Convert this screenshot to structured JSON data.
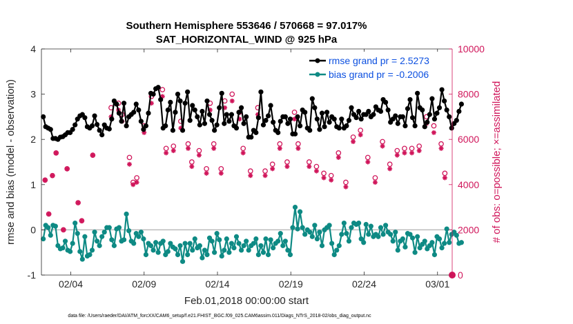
{
  "colors": {
    "rmse": "#000000",
    "bias": "#0e8a84",
    "obs": "#d0155a",
    "legend_text": "#0b4fe0",
    "zero_line": "#bbbbbb"
  },
  "chart_data": {
    "type": "line",
    "title": "Southern Hemisphere 553646 / 570668 = 97.017%",
    "subtitle": "SAT_HORIZONTAL_WIND @ 925 hPa",
    "xlabel": "Feb.01,2018 00:00:00 start",
    "ylabel": "rmse and bias (model - observation)",
    "ylabel_right": "# of obs: o=possible; ×=assimilated",
    "footer": "data file: /Users/raeder/DAI/ATM_forcXX/CAM6_setup/f.e21.FHIST_BGC.f09_025.CAM6assim.011/Diags_NTrS_2018-02/obs_diag_output.nc",
    "xlim": [
      1,
      29
    ],
    "ylim": [
      -1,
      4
    ],
    "ylim_right": [
      0,
      10000
    ],
    "x_ticks": [
      3,
      8,
      13,
      18,
      23,
      28
    ],
    "x_tick_labels": [
      "02/04",
      "02/09",
      "02/14",
      "02/19",
      "02/24",
      "03/01"
    ],
    "y_ticks": [
      -1,
      0,
      1,
      2,
      3,
      4
    ],
    "y_tick_labels": [
      "-1",
      "0",
      "1",
      "2",
      "3",
      "4"
    ],
    "y_ticks_right": [
      0,
      2000,
      4000,
      6000,
      8000,
      10000
    ],
    "y_tick_labels_right": [
      "0",
      "2000",
      "4000",
      "6000",
      "8000",
      "10000"
    ],
    "zero_line": 0,
    "legend": [
      "rmse grand pr = 2.5273",
      "bias grand pr = -0.2006"
    ],
    "legend_position": "top-right",
    "x_start": 1.125,
    "x_step": 0.1667,
    "series": [
      {
        "name": "rmse",
        "values": [
          2.5,
          2.28,
          2.25,
          2.22,
          2.02,
          2.02,
          2.0,
          2.05,
          2.06,
          2.1,
          2.15,
          2.15,
          2.22,
          2.32,
          2.45,
          2.52,
          2.55,
          2.48,
          2.28,
          2.25,
          2.3,
          2.52,
          2.33,
          2.2,
          2.1,
          2.32,
          2.25,
          2.23,
          2.45,
          2.85,
          2.78,
          2.58,
          2.4,
          2.8,
          2.3,
          2.5,
          2.55,
          2.6,
          2.78,
          2.65,
          2.4,
          2.22,
          2.3,
          2.58,
          3.02,
          3.0,
          3.12,
          3.15,
          2.88,
          2.25,
          2.3,
          2.65,
          2.82,
          2.2,
          2.6,
          3.0,
          2.85,
          2.2,
          2.8,
          3.05,
          2.42,
          2.75,
          2.65,
          2.5,
          2.32,
          2.62,
          2.35,
          2.85,
          2.55,
          2.42,
          2.2,
          2.32,
          2.7,
          3.02,
          2.35,
          2.55,
          2.4,
          2.55,
          2.3,
          2.25,
          2.6,
          2.7,
          2.35,
          2.5,
          2.05,
          2.05,
          2.2,
          2.15,
          2.48,
          3.05,
          2.32,
          2.42,
          2.52,
          2.75,
          2.38,
          2.2,
          2.15,
          2.4,
          2.5,
          2.5,
          2.35,
          2.45,
          2.12,
          2.12,
          2.5,
          2.3,
          2.65,
          2.6,
          2.25,
          2.2,
          2.9,
          2.7,
          2.45,
          2.22,
          2.58,
          2.28,
          2.6,
          2.38,
          2.5,
          2.45,
          2.28,
          2.25,
          2.45,
          2.25,
          2.3,
          2.42,
          2.7,
          2.55,
          2.48,
          2.62,
          2.45,
          2.55,
          2.55,
          2.62,
          2.5,
          2.55,
          2.72,
          2.65,
          2.62,
          2.88,
          2.82,
          2.65,
          2.38,
          2.45,
          2.52,
          2.35,
          2.5,
          2.5,
          2.3,
          2.68,
          2.88,
          2.48,
          2.3,
          3.02,
          2.7,
          2.65,
          2.28,
          2.38,
          2.55,
          2.9,
          2.45,
          2.58,
          2.7,
          3.1,
          2.85,
          2.65,
          2.5,
          2.25,
          2.35,
          2.42,
          2.62,
          2.78
        ]
      },
      {
        "name": "bias",
        "values": [
          -0.2,
          0.1,
          0.05,
          -0.12,
          0.1,
          0.08,
          -0.35,
          -0.42,
          -0.4,
          -0.25,
          -0.45,
          -0.48,
          -0.3,
          0.15,
          -0.08,
          -0.48,
          -0.65,
          -0.15,
          -0.58,
          -0.55,
          -0.45,
          -0.05,
          -0.25,
          -0.35,
          -0.15,
          -0.05,
          0.05,
          0.05,
          -0.22,
          -0.35,
          0.02,
          0.05,
          -0.25,
          -0.22,
          0.35,
          -0.02,
          -0.25,
          -0.3,
          -0.08,
          -0.15,
          -0.05,
          -0.2,
          -0.55,
          -0.3,
          -0.35,
          -0.45,
          -0.28,
          -0.5,
          -0.3,
          -0.25,
          -0.55,
          -0.48,
          -0.3,
          -0.38,
          -0.42,
          -0.55,
          -0.35,
          -0.7,
          -0.3,
          -0.55,
          -0.3,
          -0.45,
          -0.2,
          -0.4,
          -0.35,
          -0.62,
          -0.45,
          -0.55,
          -0.18,
          -0.25,
          -0.5,
          -0.08,
          -0.22,
          -0.58,
          -0.45,
          -0.2,
          -0.5,
          -0.3,
          -0.4,
          -0.15,
          -0.3,
          -0.45,
          -0.35,
          -0.25,
          -0.45,
          -0.35,
          -0.3,
          -0.2,
          -0.55,
          -0.35,
          -0.5,
          -0.2,
          -0.55,
          -0.22,
          -0.4,
          -0.3,
          -0.25,
          -0.08,
          -0.35,
          -0.25,
          -0.45,
          -0.55,
          0.05,
          0.5,
          0.02,
          0.4,
          0.05,
          -0.1,
          0.0,
          -0.05,
          -0.15,
          0.1,
          -0.2,
          -0.05,
          -0.35,
          0.0,
          0.05,
          0.1,
          -0.3,
          -0.55,
          -0.45,
          -0.35,
          -0.1,
          0.15,
          -0.08,
          -0.25,
          0.05,
          0.15,
          0.12,
          0.15,
          -0.2,
          -0.28,
          0.12,
          -0.1,
          0.08,
          -0.15,
          -0.1,
          -0.15,
          0.05,
          -0.1,
          0.1,
          -0.05,
          -0.1,
          -0.25,
          -0.05,
          -0.45,
          -0.25,
          -0.2,
          -0.38,
          -0.08,
          -0.1,
          -0.18,
          -0.5,
          -0.15,
          -0.4,
          -0.32,
          -0.25,
          -0.42,
          -0.35,
          -0.28,
          -0.55,
          -0.15,
          -0.2,
          -0.4,
          -0.3,
          0.02,
          -0.28,
          -0.1,
          -0.05,
          -0.12,
          -0.3,
          -0.28
        ]
      }
    ],
    "obs_possible": [
      {
        "x": 1.25,
        "y": 4200
      },
      {
        "x": 1.5,
        "y": 2700
      },
      {
        "x": 1.75,
        "y": 4400
      },
      {
        "x": 2.0,
        "y": 5400
      },
      {
        "x": 2.5,
        "y": 2000
      },
      {
        "x": 2.75,
        "y": 4700
      },
      {
        "x": 3.5,
        "y": 3200
      },
      {
        "x": 3.75,
        "y": 2400
      },
      {
        "x": 4.5,
        "y": 5300
      },
      {
        "x": 5.75,
        "y": 7400
      },
      {
        "x": 6.25,
        "y": 7600
      },
      {
        "x": 6.5,
        "y": 7100
      },
      {
        "x": 7.0,
        "y": 5200
      },
      {
        "x": 7.25,
        "y": 4100
      },
      {
        "x": 7.5,
        "y": 4300
      },
      {
        "x": 8.0,
        "y": 6600
      },
      {
        "x": 8.5,
        "y": 7900
      },
      {
        "x": 9.25,
        "y": 8200
      },
      {
        "x": 9.5,
        "y": 5600
      },
      {
        "x": 10.0,
        "y": 5700
      },
      {
        "x": 10.5,
        "y": 6800
      },
      {
        "x": 11.0,
        "y": 5800
      },
      {
        "x": 11.25,
        "y": 5000
      },
      {
        "x": 11.75,
        "y": 5500
      },
      {
        "x": 12.25,
        "y": 4700
      },
      {
        "x": 12.5,
        "y": 7600
      },
      {
        "x": 12.75,
        "y": 5800
      },
      {
        "x": 13.25,
        "y": 4700
      },
      {
        "x": 13.5,
        "y": 7700
      },
      {
        "x": 14.0,
        "y": 8000
      },
      {
        "x": 14.5,
        "y": 7200
      },
      {
        "x": 14.75,
        "y": 5600
      },
      {
        "x": 15.25,
        "y": 4600
      },
      {
        "x": 15.75,
        "y": 7400
      },
      {
        "x": 16.25,
        "y": 4600
      },
      {
        "x": 16.75,
        "y": 4900
      },
      {
        "x": 17.25,
        "y": 5800
      },
      {
        "x": 17.75,
        "y": 5000
      },
      {
        "x": 18.25,
        "y": 7200
      },
      {
        "x": 18.5,
        "y": 5800
      },
      {
        "x": 19.25,
        "y": 5000
      },
      {
        "x": 19.75,
        "y": 4800
      },
      {
        "x": 20.25,
        "y": 4500
      },
      {
        "x": 20.75,
        "y": 4400
      },
      {
        "x": 21.25,
        "y": 5400
      },
      {
        "x": 21.75,
        "y": 4100
      },
      {
        "x": 22.25,
        "y": 6100
      },
      {
        "x": 22.75,
        "y": 6400
      },
      {
        "x": 23.25,
        "y": 5200
      },
      {
        "x": 23.75,
        "y": 4300
      },
      {
        "x": 24.25,
        "y": 5900
      },
      {
        "x": 24.75,
        "y": 4900
      },
      {
        "x": 25.25,
        "y": 5500
      },
      {
        "x": 25.75,
        "y": 5600
      },
      {
        "x": 26.25,
        "y": 5600
      },
      {
        "x": 26.75,
        "y": 5700
      },
      {
        "x": 27.25,
        "y": 7000
      },
      {
        "x": 27.75,
        "y": 6600
      },
      {
        "x": 28.25,
        "y": 5800
      },
      {
        "x": 28.5,
        "y": 4500
      }
    ],
    "obs_assimilated": [
      {
        "x": 1.25,
        "y": 4200
      },
      {
        "x": 1.5,
        "y": 2700
      },
      {
        "x": 1.75,
        "y": 4400
      },
      {
        "x": 2.0,
        "y": 5400
      },
      {
        "x": 2.5,
        "y": 2000
      },
      {
        "x": 2.75,
        "y": 4700
      },
      {
        "x": 3.5,
        "y": 3200
      },
      {
        "x": 3.75,
        "y": 2400
      },
      {
        "x": 4.5,
        "y": 5300
      },
      {
        "x": 5.75,
        "y": 7000
      },
      {
        "x": 6.25,
        "y": 7300
      },
      {
        "x": 6.5,
        "y": 6800
      },
      {
        "x": 7.0,
        "y": 4900
      },
      {
        "x": 7.25,
        "y": 4000
      },
      {
        "x": 7.5,
        "y": 4100
      },
      {
        "x": 8.0,
        "y": 6300
      },
      {
        "x": 8.5,
        "y": 7600
      },
      {
        "x": 9.25,
        "y": 7900
      },
      {
        "x": 9.5,
        "y": 5400
      },
      {
        "x": 10.0,
        "y": 5500
      },
      {
        "x": 10.5,
        "y": 6500
      },
      {
        "x": 11.0,
        "y": 5600
      },
      {
        "x": 11.25,
        "y": 4800
      },
      {
        "x": 11.75,
        "y": 5300
      },
      {
        "x": 12.25,
        "y": 4500
      },
      {
        "x": 12.5,
        "y": 7300
      },
      {
        "x": 12.75,
        "y": 5600
      },
      {
        "x": 13.25,
        "y": 4500
      },
      {
        "x": 13.5,
        "y": 7400
      },
      {
        "x": 14.0,
        "y": 7700
      },
      {
        "x": 14.5,
        "y": 6900
      },
      {
        "x": 14.75,
        "y": 5400
      },
      {
        "x": 15.25,
        "y": 4400
      },
      {
        "x": 15.75,
        "y": 7100
      },
      {
        "x": 16.25,
        "y": 4400
      },
      {
        "x": 16.75,
        "y": 4700
      },
      {
        "x": 17.25,
        "y": 5600
      },
      {
        "x": 17.75,
        "y": 4800
      },
      {
        "x": 18.25,
        "y": 6900
      },
      {
        "x": 18.5,
        "y": 5600
      },
      {
        "x": 19.25,
        "y": 4800
      },
      {
        "x": 19.75,
        "y": 4600
      },
      {
        "x": 20.25,
        "y": 4300
      },
      {
        "x": 20.75,
        "y": 4200
      },
      {
        "x": 21.25,
        "y": 5200
      },
      {
        "x": 21.75,
        "y": 3900
      },
      {
        "x": 22.25,
        "y": 5900
      },
      {
        "x": 22.75,
        "y": 6200
      },
      {
        "x": 23.25,
        "y": 5000
      },
      {
        "x": 23.75,
        "y": 4100
      },
      {
        "x": 24.25,
        "y": 5700
      },
      {
        "x": 24.75,
        "y": 4700
      },
      {
        "x": 25.25,
        "y": 5300
      },
      {
        "x": 25.75,
        "y": 5400
      },
      {
        "x": 26.25,
        "y": 5400
      },
      {
        "x": 26.75,
        "y": 5500
      },
      {
        "x": 27.25,
        "y": 6700
      },
      {
        "x": 27.75,
        "y": 6300
      },
      {
        "x": 28.25,
        "y": 5600
      },
      {
        "x": 28.5,
        "y": 4300
      }
    ],
    "obs_zero_marker": {
      "x": 29,
      "y": 0
    }
  }
}
